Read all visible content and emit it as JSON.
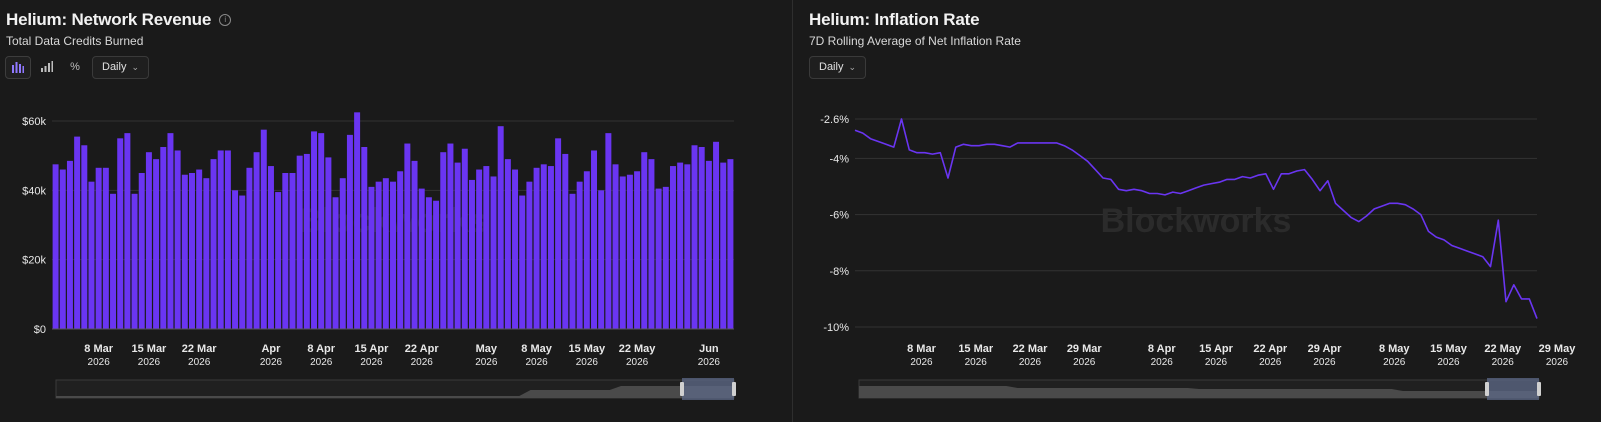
{
  "left": {
    "title": "Helium: Network Revenue",
    "subtitle": "Total Data Credits Burned",
    "info_icon": "info-icon",
    "icon_buttons": [
      "bar-chart-icon",
      "bar-chart-ascending-icon",
      "percent-icon"
    ],
    "dropdown_label": "Daily",
    "watermark": "Blockworks",
    "x_ticks": [
      {
        "label": "8 Mar",
        "year": "2026",
        "day": 6
      },
      {
        "label": "15 Mar",
        "year": "2026",
        "day": 13
      },
      {
        "label": "22 Mar",
        "year": "2026",
        "day": 20
      },
      {
        "label": "Apr",
        "year": "2026",
        "day": 30
      },
      {
        "label": "8 Apr",
        "year": "2026",
        "day": 37
      },
      {
        "label": "15 Apr",
        "year": "2026",
        "day": 44
      },
      {
        "label": "22 Apr",
        "year": "2026",
        "day": 51
      },
      {
        "label": "May",
        "year": "2026",
        "day": 60
      },
      {
        "label": "8 May",
        "year": "2026",
        "day": 67
      },
      {
        "label": "15 May",
        "year": "2026",
        "day": 74
      },
      {
        "label": "22 May",
        "year": "2026",
        "day": 81
      },
      {
        "label": "Jun",
        "year": "2026",
        "day": 91
      }
    ]
  },
  "right": {
    "title": "Helium: Inflation Rate",
    "subtitle": "7D Rolling Average of Net Inflation Rate",
    "dropdown_label": "Daily",
    "watermark": "Blockworks",
    "x_ticks": [
      {
        "label": "8 Mar",
        "year": "2026",
        "day": 6
      },
      {
        "label": "15 Mar",
        "year": "2026",
        "day": 13
      },
      {
        "label": "22 Mar",
        "year": "2026",
        "day": 20
      },
      {
        "label": "29 Mar",
        "year": "2026",
        "day": 27
      },
      {
        "label": "8 Apr",
        "year": "2026",
        "day": 37
      },
      {
        "label": "15 Apr",
        "year": "2026",
        "day": 44
      },
      {
        "label": "22 Apr",
        "year": "2026",
        "day": 51
      },
      {
        "label": "29 Apr",
        "year": "2026",
        "day": 58
      },
      {
        "label": "8 May",
        "year": "2026",
        "day": 67
      },
      {
        "label": "15 May",
        "year": "2026",
        "day": 74
      },
      {
        "label": "22 May",
        "year": "2026",
        "day": 81
      },
      {
        "label": "29 May",
        "year": "2026",
        "day": 88
      }
    ]
  },
  "colors": {
    "bar": "#6a35f2",
    "line": "#6a35f2",
    "grid": "#333333",
    "background": "#1a1a1a"
  },
  "chart_data": [
    {
      "type": "bar",
      "title": "Helium: Network Revenue",
      "subtitle": "Total Data Credits Burned",
      "x_start": "2026-03-02",
      "y_ticks": [
        "$0",
        "$20k",
        "$40k",
        "$60k"
      ],
      "ylim": [
        0,
        62000
      ],
      "grid": true,
      "values": [
        47500,
        46000,
        48500,
        55500,
        53000,
        42500,
        46500,
        46500,
        39000,
        55000,
        56500,
        39000,
        45000,
        51000,
        49000,
        52500,
        56500,
        51500,
        44500,
        45000,
        46000,
        43500,
        49000,
        51500,
        51500,
        40000,
        38500,
        46500,
        51000,
        57500,
        47000,
        39500,
        45000,
        45000,
        50000,
        50500,
        57000,
        56500,
        49500,
        38000,
        43500,
        56000,
        62500,
        52500,
        41000,
        42500,
        43500,
        42500,
        45500,
        53500,
        48500,
        40500,
        38000,
        37000,
        51000,
        53500,
        48000,
        52000,
        43000,
        46000,
        47000,
        44000,
        58500,
        49000,
        46000,
        38500,
        42500,
        46500,
        47500,
        47000,
        55000,
        50500,
        39000,
        42500,
        45500,
        51500,
        40000,
        56500,
        47500,
        44000,
        44500,
        45500,
        51000,
        49000,
        40500,
        41000,
        47000,
        48000,
        47500,
        53000,
        52500,
        48500,
        54000,
        48000,
        49000
      ]
    },
    {
      "type": "line",
      "title": "Helium: Inflation Rate",
      "subtitle": "7D Rolling Average of Net Inflation Rate",
      "x_start": "2026-03-02",
      "y_ticks": [
        "-2.6%",
        "-4%",
        "-6%",
        "-8%",
        "-10%"
      ],
      "ylim": [
        -10,
        -2.6
      ],
      "grid": true,
      "values": [
        -3.0,
        -3.1,
        -3.3,
        -3.4,
        -3.5,
        -3.6,
        -2.6,
        -3.7,
        -3.8,
        -3.8,
        -3.85,
        -3.8,
        -4.7,
        -3.6,
        -3.5,
        -3.55,
        -3.55,
        -3.5,
        -3.5,
        -3.55,
        -3.6,
        -3.45,
        -3.45,
        -3.45,
        -3.45,
        -3.45,
        -3.45,
        -3.55,
        -3.7,
        -3.9,
        -4.1,
        -4.4,
        -4.7,
        -4.75,
        -5.1,
        -5.15,
        -5.1,
        -5.15,
        -5.25,
        -5.25,
        -5.3,
        -5.2,
        -5.25,
        -5.15,
        -5.05,
        -4.95,
        -4.9,
        -4.85,
        -4.75,
        -4.75,
        -4.65,
        -4.7,
        -4.6,
        -4.55,
        -5.1,
        -4.55,
        -4.55,
        -4.45,
        -4.4,
        -4.75,
        -5.15,
        -4.8,
        -5.6,
        -5.85,
        -6.1,
        -6.25,
        -6.05,
        -5.8,
        -5.7,
        -5.6,
        -5.6,
        -5.65,
        -5.8,
        -6.0,
        -6.6,
        -6.8,
        -6.9,
        -7.1,
        -7.2,
        -7.3,
        -7.4,
        -7.5,
        -7.85,
        -6.2,
        -9.1,
        -8.5,
        -9.0,
        -9.0,
        -9.7
      ]
    }
  ]
}
